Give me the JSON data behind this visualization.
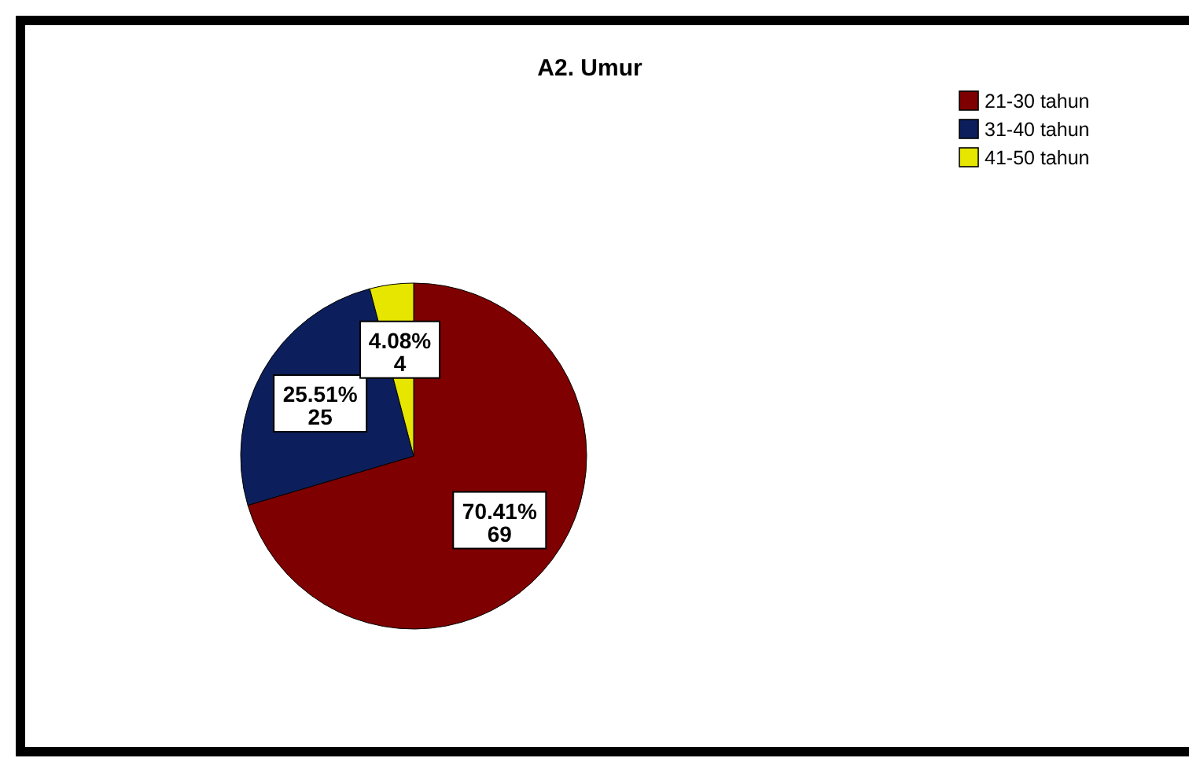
{
  "chart_data": {
    "type": "pie",
    "title": "A2. Umur",
    "categories": [
      "21-30 tahun",
      "31-40 tahun",
      "41-50 tahun"
    ],
    "values": [
      69,
      25,
      4
    ],
    "colors": [
      "#7f0000",
      "#0c1f5c",
      "#e6e600"
    ],
    "value_labels": [
      "70.41%\n69",
      "25.51%\n25",
      "4.08%\n4"
    ],
    "legend": "top right"
  }
}
